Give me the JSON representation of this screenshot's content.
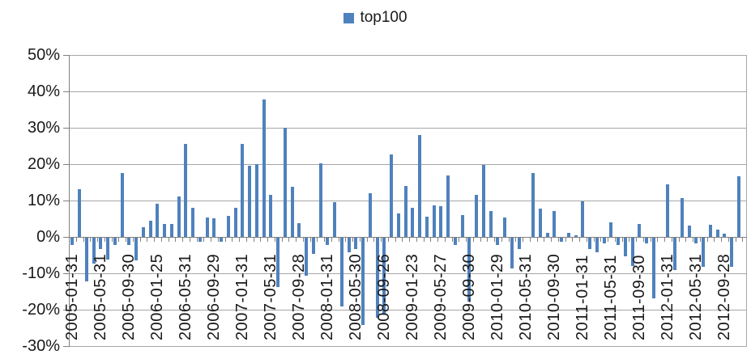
{
  "legend": {
    "label": "top100",
    "marker_color": "#4F81BD"
  },
  "chart_data": {
    "type": "bar",
    "title": "",
    "series_name": "top100",
    "unit": "percent",
    "legend_position": "top-center",
    "grid": true,
    "ylim": [
      -30,
      50
    ],
    "y_tick_step": 10,
    "y_tick_labels": [
      "50%",
      "40%",
      "30%",
      "20%",
      "10%",
      "0%",
      "-10%",
      "-20%",
      "-30%"
    ],
    "x_tick_every": 4,
    "x_tick_labels": [
      "2005-01-31",
      "2005-05-31",
      "2005-09-30",
      "2006-01-25",
      "2006-05-31",
      "2006-09-29",
      "2007-01-31",
      "2007-05-31",
      "2007-09-28",
      "2008-01-31",
      "2008-05-30",
      "2008-09-26",
      "2009-01-23",
      "2009-05-27",
      "2009-09-30",
      "2010-01-29",
      "2010-05-31",
      "2010-09-30",
      "2011-01-31",
      "2011-05-31",
      "2011-09-30",
      "2012-01-31",
      "2012-05-31",
      "2012-09-28"
    ],
    "values": [
      -2,
      13,
      -12,
      -7,
      -3,
      -6,
      -2,
      17.5,
      -2,
      -6.3,
      2.6,
      4.4,
      9,
      3.5,
      3.5,
      11,
      25.5,
      8,
      -1,
      5.4,
      5,
      -1,
      5.7,
      8,
      25.5,
      19.5,
      20,
      37.8,
      11.5,
      -13.5,
      30,
      13.7,
      3.7,
      -10.5,
      -4.4,
      20.2,
      -1.9,
      9.6,
      -18.8,
      -4.1,
      -3,
      -24,
      11.9,
      -22,
      -21,
      22.7,
      6.4,
      13.9,
      8.1,
      28.1,
      5.6,
      8.7,
      8.4,
      16.8,
      -2,
      6.1,
      -17.5,
      11.6,
      19.8,
      7.2,
      -2,
      5.3,
      -8.5,
      -3,
      0,
      17.6,
      7.7,
      1,
      7.2,
      -1,
      1,
      0.5,
      9.8,
      -3,
      -4,
      -1.5,
      3.9,
      -2,
      -5,
      -7.8,
      3.5,
      -1.5,
      -16.7,
      0,
      14.4,
      -8.9,
      10.7,
      3.1,
      -1.5,
      -8.1,
      3.3,
      2,
      0.9,
      -8,
      16.6
    ],
    "colors": {
      "bar": "#4F81BD",
      "gridline": "#A6A6A6",
      "axis": "#808080",
      "text": "#1A1A1A"
    }
  }
}
